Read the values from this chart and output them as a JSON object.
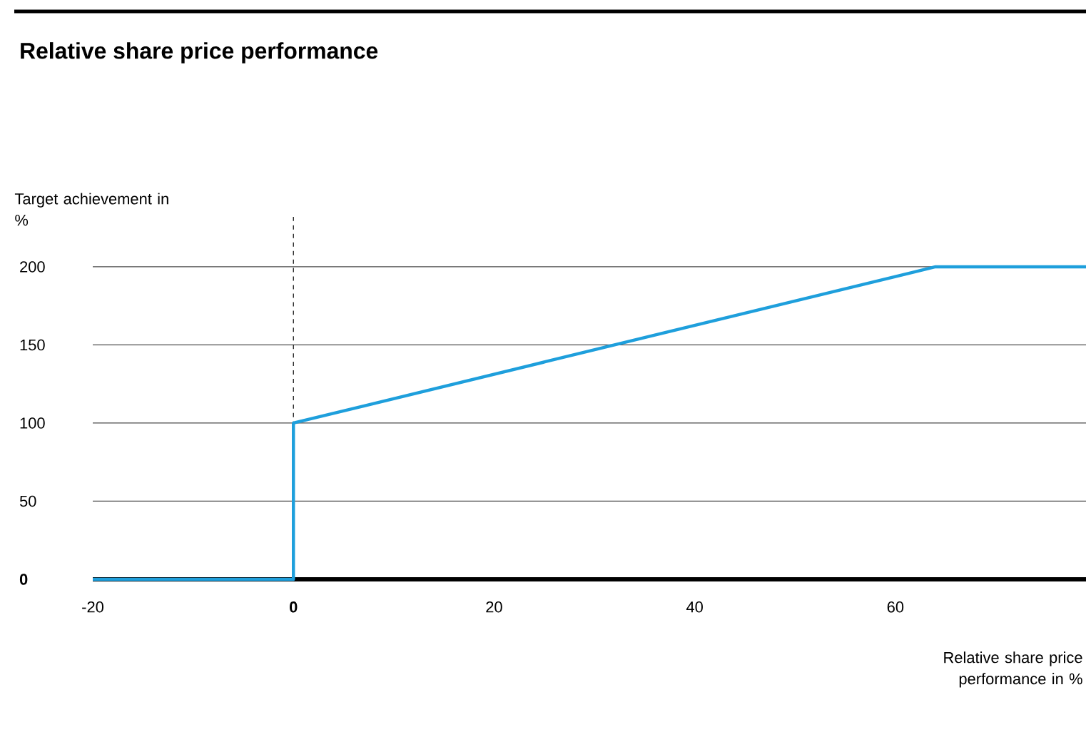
{
  "chart_data": {
    "type": "line",
    "title": "Relative share price performance",
    "xlabel": "Relative share price performance in %",
    "ylabel": "Target achievement in %",
    "x": [
      -20,
      0,
      0,
      64,
      79
    ],
    "series": [
      {
        "color": "#1e9fdc",
        "values": [
          0,
          0,
          100,
          200,
          200
        ]
      }
    ],
    "xlim": [
      -20,
      79
    ],
    "ylim": [
      0,
      200
    ],
    "xticks": [
      -20,
      0,
      20,
      40,
      60
    ],
    "yticks": [
      0,
      50,
      100,
      150,
      200
    ],
    "grid": "y",
    "marker": "none",
    "line_style": "solid",
    "ref_lines": [
      {
        "axis": "x",
        "value": 0,
        "line_style": "dashed",
        "color": "#000000"
      }
    ]
  }
}
